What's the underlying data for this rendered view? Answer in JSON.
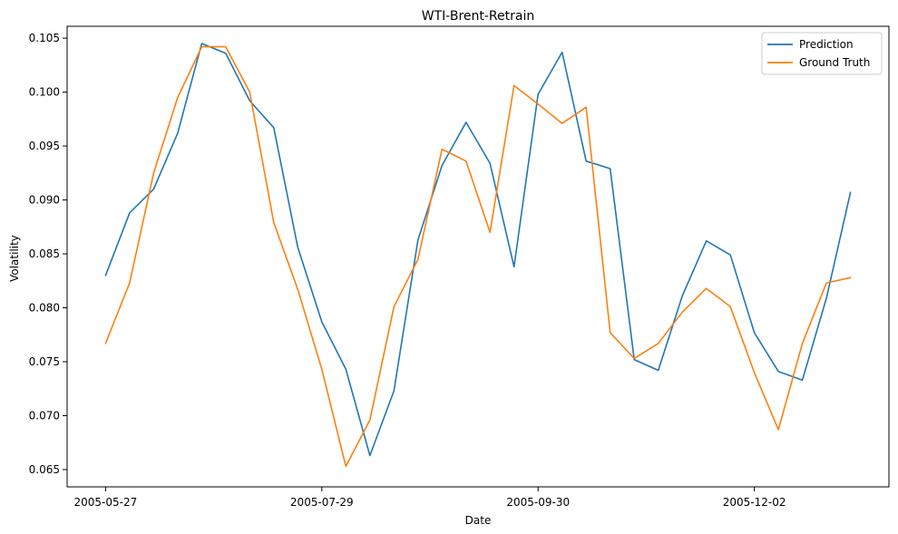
{
  "chart_data": {
    "type": "line",
    "title": "WTI-Brent-Retrain",
    "xlabel": "Date",
    "ylabel": "Volatility",
    "x_ticks": [
      "2005-05-27",
      "2005-07-29",
      "2005-09-30",
      "2005-12-02"
    ],
    "x_tick_index": [
      0,
      9,
      18,
      27
    ],
    "x_index_range": [
      -1.6,
      32.6
    ],
    "y_ticks": [
      "0.065",
      "0.070",
      "0.075",
      "0.080",
      "0.085",
      "0.090",
      "0.095",
      "0.100",
      "0.105"
    ],
    "ylim": [
      0.0634,
      0.1061
    ],
    "grid": false,
    "legend_position": "top-right",
    "series": [
      {
        "name": "Prediction",
        "color": "#1f77b4",
        "values": [
          0.083,
          0.0888,
          0.091,
          0.0962,
          0.1045,
          0.1036,
          0.0992,
          0.0967,
          0.0856,
          0.0787,
          0.0743,
          0.0663,
          0.0723,
          0.0863,
          0.0932,
          0.0972,
          0.0934,
          0.0838,
          0.0998,
          0.1037,
          0.0936,
          0.0929,
          0.0752,
          0.0742,
          0.0811,
          0.0862,
          0.0849,
          0.0777,
          0.0741,
          0.0733,
          0.0809,
          0.0907
        ]
      },
      {
        "name": "Ground Truth",
        "color": "#ff7f0e",
        "values": [
          0.0767,
          0.0823,
          0.0925,
          0.0995,
          0.1042,
          0.1042,
          0.1,
          0.0879,
          0.0817,
          0.0743,
          0.0653,
          0.0696,
          0.0801,
          0.0845,
          0.0947,
          0.0936,
          0.087,
          0.1006,
          0.0989,
          0.0971,
          0.0986,
          0.0777,
          0.0753,
          0.0767,
          0.0796,
          0.0818,
          0.0801,
          0.074,
          0.0687,
          0.0767,
          0.0823,
          0.0828
        ]
      }
    ]
  }
}
